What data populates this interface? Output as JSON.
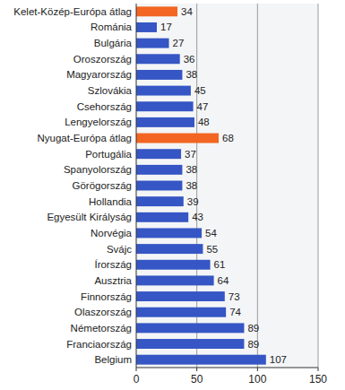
{
  "chart_data": {
    "type": "bar",
    "orientation": "horizontal",
    "categories": [
      "Kelet-Közép-Európa átlag",
      "Románia",
      "Bulgária",
      "Oroszország",
      "Magyarország",
      "Szlovákia",
      "Csehország",
      "Lengyelország",
      "Nyugat-Európa átlag",
      "Portugália",
      "Spanyolország",
      "Görögország",
      "Hollandia",
      "Egyesült Királyság",
      "Norvégia",
      "Svájc",
      "Írország",
      "Ausztria",
      "Finnország",
      "Olaszország",
      "Németország",
      "Franciaország",
      "Belgium"
    ],
    "values": [
      34,
      17,
      27,
      36,
      38,
      45,
      47,
      48,
      68,
      37,
      38,
      38,
      39,
      43,
      54,
      55,
      61,
      64,
      73,
      74,
      89,
      89,
      107
    ],
    "colors": [
      "#f26522",
      "#3556c4",
      "#3556c4",
      "#3556c4",
      "#3556c4",
      "#3556c4",
      "#3556c4",
      "#3556c4",
      "#f26522",
      "#3556c4",
      "#3556c4",
      "#3556c4",
      "#3556c4",
      "#3556c4",
      "#3556c4",
      "#3556c4",
      "#3556c4",
      "#3556c4",
      "#3556c4",
      "#3556c4",
      "#3556c4",
      "#3556c4",
      "#3556c4"
    ],
    "xlim": [
      0,
      150
    ],
    "xticks": [
      0,
      50,
      100,
      150
    ],
    "grid": true,
    "data_labels": true
  }
}
